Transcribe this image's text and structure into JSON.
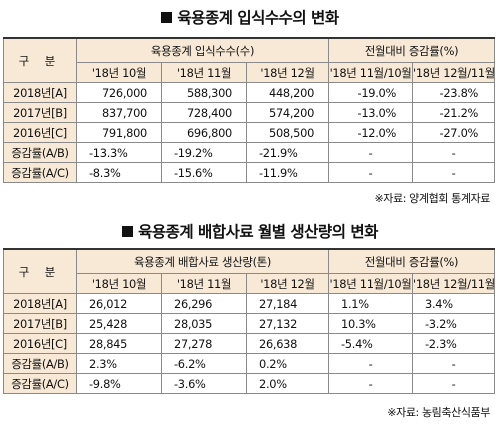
{
  "table1": {
    "title": "육용종계 입식수수의 변화",
    "row_header": "구 분",
    "group1_header": "육용종계 입식수수(수)",
    "group2_header": "전월대비 증감률(%)",
    "columns": [
      "'18년 10월",
      "'18년 11월",
      "'18년 12월",
      "'18년 11월/10월",
      "'18년 12월/11월"
    ],
    "rows": [
      {
        "label": "2018년[A]",
        "cells": [
          "726,000",
          "588,300",
          "448,200",
          "-19.0%",
          "-23.8%"
        ]
      },
      {
        "label": "2017년[B]",
        "cells": [
          "837,700",
          "728,400",
          "574,200",
          "-13.0%",
          "-21.2%"
        ]
      },
      {
        "label": "2016년[C]",
        "cells": [
          "791,800",
          "696,800",
          "508,500",
          "-12.0%",
          "-27.0%"
        ]
      },
      {
        "label": "증감률(A/B)",
        "cells": [
          "-13.3%",
          "-19.2%",
          "-21.9%",
          "-",
          "-"
        ]
      },
      {
        "label": "증감률(A/C)",
        "cells": [
          "-8.3%",
          "-15.6%",
          "-11.9%",
          "-",
          "-"
        ]
      }
    ],
    "source": "※자료: 양계협회 통계자료"
  },
  "table2": {
    "title": "육용종계 배합사료 월별 생산량의 변화",
    "row_header": "구 분",
    "group1_header": "육용종계 배합사료 생산량(톤)",
    "group2_header": "전월대비 증감률(%)",
    "columns": [
      "'18년 10월",
      "'18년 11월",
      "'18년 12월",
      "'18년 11월/10월",
      "'18년 12월/11월"
    ],
    "rows": [
      {
        "label": "2018년[A]",
        "cells": [
          "26,012",
          "26,296",
          "27,184",
          "1.1%",
          "3.4%"
        ]
      },
      {
        "label": "2017년[B]",
        "cells": [
          "25,428",
          "28,035",
          "27,132",
          "10.3%",
          "-3.2%"
        ]
      },
      {
        "label": "2016년[C]",
        "cells": [
          "28,845",
          "27,278",
          "26,638",
          "-5.4%",
          "-2.3%"
        ]
      },
      {
        "label": "증감률(A/B)",
        "cells": [
          "2.3%",
          "-6.2%",
          "0.2%",
          "-",
          "-"
        ]
      },
      {
        "label": "증감률(A/C)",
        "cells": [
          "-9.8%",
          "-3.6%",
          "2.0%",
          "-",
          "-"
        ]
      }
    ],
    "source": "※자료: 농림축산식품부"
  },
  "colors": {
    "header_bg": "#f7e9d6",
    "border": "#8a8a8a",
    "text": "#111111"
  }
}
